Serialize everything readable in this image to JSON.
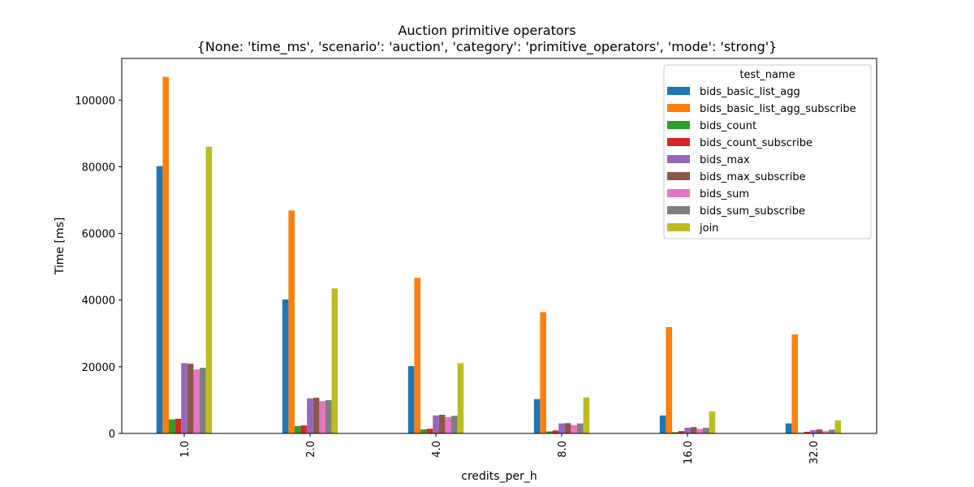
{
  "chart_data": {
    "type": "bar",
    "title": "Auction primitive operators",
    "subtitle": "{None: 'time_ms', 'scenario': 'auction', 'category': 'primitive_operators', 'mode': 'strong'}",
    "xlabel": "credits_per_h",
    "ylabel": "Time [ms]",
    "categories": [
      "1.0",
      "2.0",
      "4.0",
      "8.0",
      "16.0",
      "32.0"
    ],
    "ylim": [
      0,
      112500
    ],
    "yticks": [
      0,
      20000,
      40000,
      60000,
      80000,
      100000
    ],
    "grid": false,
    "legend": {
      "title": "test_name",
      "placement": "top-right"
    },
    "series": [
      {
        "name": "bids_basic_list_agg",
        "color": "#1f77b4",
        "values": [
          80200,
          40200,
          20200,
          10300,
          5400,
          3000
        ]
      },
      {
        "name": "bids_basic_list_agg_subscribe",
        "color": "#ff7f0e",
        "values": [
          107000,
          66900,
          46700,
          36400,
          31900,
          29700
        ]
      },
      {
        "name": "bids_count",
        "color": "#2ca02c",
        "values": [
          4200,
          2200,
          1200,
          600,
          400,
          200
        ]
      },
      {
        "name": "bids_count_subscribe",
        "color": "#d62728",
        "values": [
          4400,
          2400,
          1400,
          900,
          700,
          500
        ]
      },
      {
        "name": "bids_max",
        "color": "#9467bd",
        "values": [
          21100,
          10500,
          5400,
          3000,
          1700,
          1000
        ]
      },
      {
        "name": "bids_max_subscribe",
        "color": "#8c564b",
        "values": [
          20900,
          10700,
          5600,
          3100,
          1900,
          1200
        ]
      },
      {
        "name": "bids_sum",
        "color": "#e377c2",
        "values": [
          19200,
          9700,
          4900,
          2500,
          1400,
          700
        ]
      },
      {
        "name": "bids_sum_subscribe",
        "color": "#7f7f7f",
        "values": [
          19700,
          10000,
          5300,
          3000,
          1700,
          1100
        ]
      },
      {
        "name": "join",
        "color": "#bcbd22",
        "values": [
          86000,
          43500,
          21100,
          10800,
          6600,
          3900
        ]
      }
    ]
  }
}
